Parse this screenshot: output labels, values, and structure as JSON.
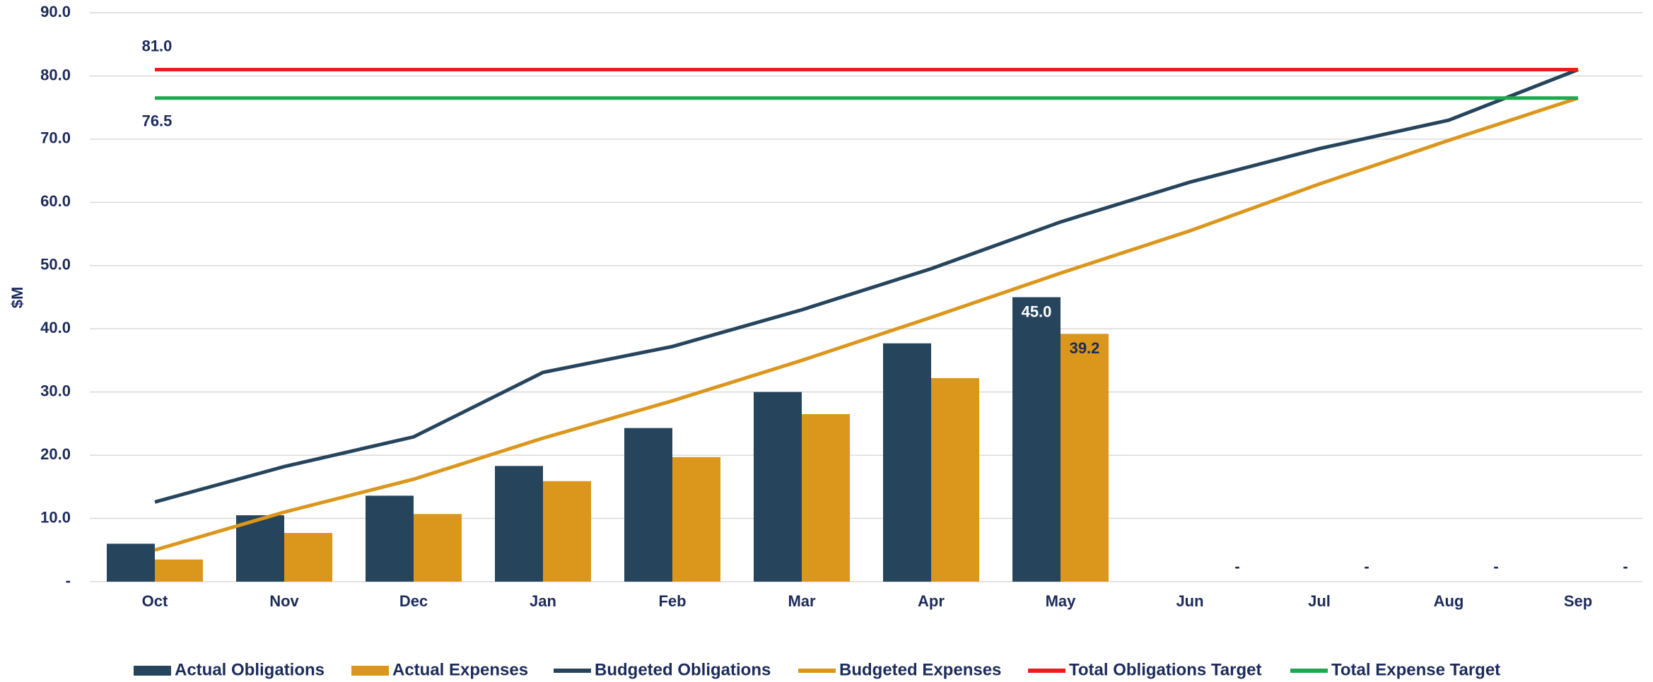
{
  "chart_data": {
    "type": "bar",
    "y_label": "$M",
    "categories": [
      "Oct",
      "Nov",
      "Dec",
      "Jan",
      "Feb",
      "Mar",
      "Apr",
      "May",
      "Jun",
      "Jul",
      "Aug",
      "Sep"
    ],
    "ylim": [
      0,
      90
    ],
    "yticks": [
      {
        "value": 0,
        "label": "-"
      },
      {
        "value": 10,
        "label": "10.0"
      },
      {
        "value": 20,
        "label": "20.0"
      },
      {
        "value": 30,
        "label": "30.0"
      },
      {
        "value": 40,
        "label": "40.0"
      },
      {
        "value": 50,
        "label": "50.0"
      },
      {
        "value": 60,
        "label": "60.0"
      },
      {
        "value": 70,
        "label": "70.0"
      },
      {
        "value": 80,
        "label": "80.0"
      },
      {
        "value": 90,
        "label": "90.0"
      }
    ],
    "grid": true,
    "legend": "bottom",
    "series": [
      {
        "name": "Actual Obligations",
        "type": "bar",
        "color": "#26455d",
        "values": [
          6.0,
          10.5,
          13.6,
          18.3,
          24.3,
          30.0,
          37.7,
          45.0,
          null,
          null,
          null,
          null
        ],
        "value_labels": [
          null,
          null,
          null,
          null,
          null,
          null,
          null,
          "45.0",
          null,
          null,
          null,
          null
        ]
      },
      {
        "name": "Actual Expenses",
        "type": "bar",
        "color": "#db961c",
        "values": [
          3.5,
          7.7,
          10.7,
          15.9,
          19.7,
          26.5,
          32.2,
          39.2,
          0,
          0,
          0,
          0
        ],
        "value_labels": [
          null,
          null,
          null,
          null,
          null,
          null,
          null,
          "39.2",
          "-",
          "-",
          "-",
          "-"
        ]
      },
      {
        "name": "Budgeted Obligations",
        "type": "line",
        "color": "#26455d",
        "values": [
          12.6,
          18.2,
          22.9,
          33.1,
          37.2,
          43.0,
          49.5,
          56.9,
          63.2,
          68.5,
          73.0,
          81.0
        ]
      },
      {
        "name": "Budgeted Expenses",
        "type": "line",
        "color": "#db961c",
        "values": [
          5.0,
          11.0,
          16.2,
          22.7,
          28.6,
          35.0,
          41.8,
          48.8,
          55.5,
          62.9,
          69.8,
          76.5
        ]
      },
      {
        "name": "Total Obligations Target",
        "type": "line",
        "color": "#ee1c1c",
        "values": [
          81.0,
          81.0,
          81.0,
          81.0,
          81.0,
          81.0,
          81.0,
          81.0,
          81.0,
          81.0,
          81.0,
          81.0
        ],
        "value_labels": [
          "81.0",
          null,
          null,
          null,
          null,
          null,
          null,
          null,
          null,
          null,
          null,
          null
        ]
      },
      {
        "name": "Total Expense Target",
        "type": "line",
        "color": "#1fa84f",
        "values": [
          76.5,
          76.5,
          76.5,
          76.5,
          76.5,
          76.5,
          76.5,
          76.5,
          76.5,
          76.5,
          76.5,
          76.5
        ],
        "value_labels": [
          "76.5",
          null,
          null,
          null,
          null,
          null,
          null,
          null,
          null,
          null,
          null,
          null
        ]
      }
    ]
  }
}
